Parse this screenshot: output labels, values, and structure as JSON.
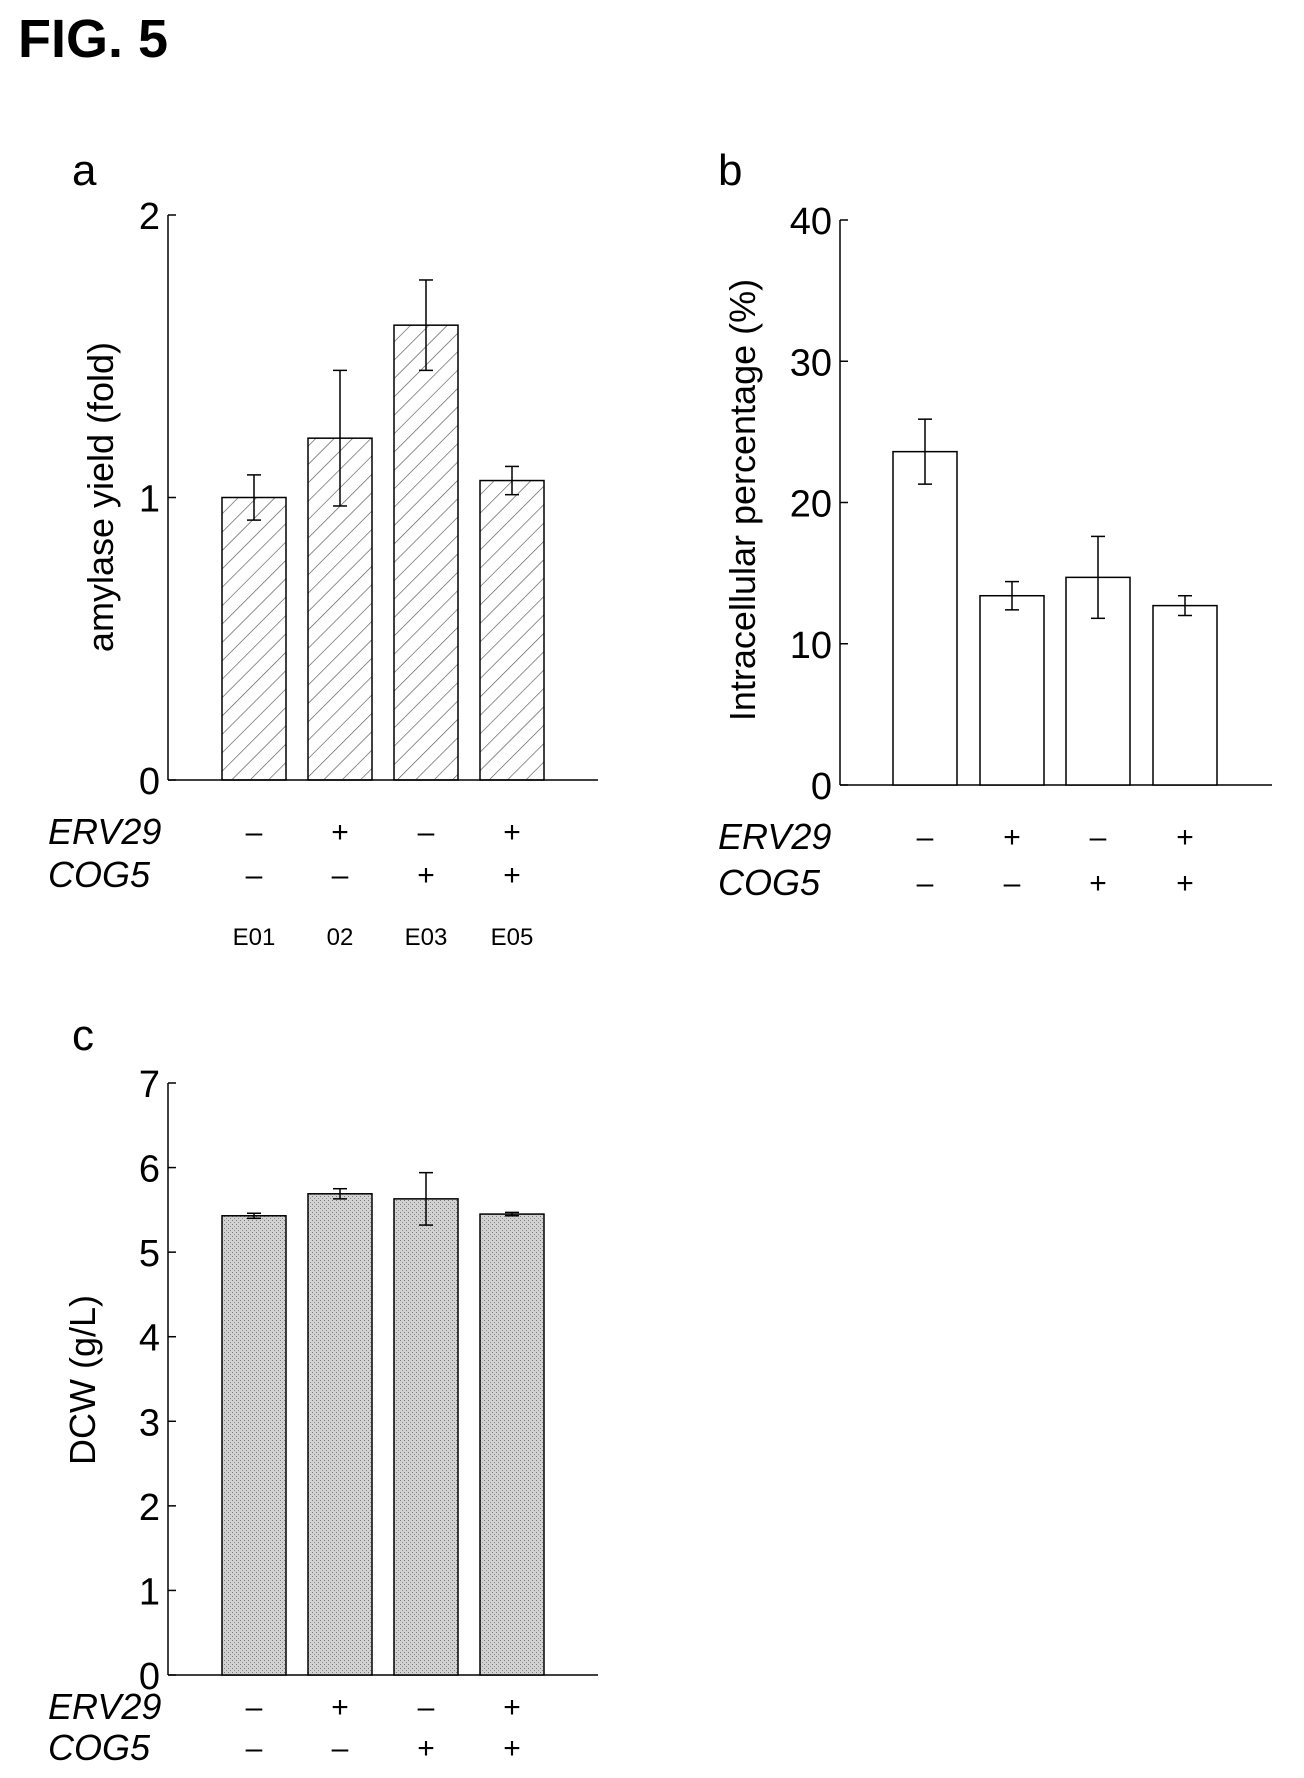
{
  "figure": {
    "title": "FIG. 5"
  },
  "row_labels": {
    "erv29": "ERV29",
    "cog5": "COG5"
  },
  "chart_data": [
    {
      "panel": "a",
      "type": "bar",
      "ylabel": "amylase yield (fold)",
      "ylim": [
        0,
        2
      ],
      "yticks": [
        "0",
        "1",
        "2"
      ],
      "fill": "hatched",
      "values": [
        1.0,
        1.21,
        1.61,
        1.06
      ],
      "errors": [
        0.08,
        0.24,
        0.16,
        0.05
      ],
      "erv29": [
        "-",
        "+",
        "-",
        "+"
      ],
      "cog5": [
        "-",
        "-",
        "+",
        "+"
      ],
      "strain_labels": [
        "E01",
        "02",
        "E03",
        "E05"
      ]
    },
    {
      "panel": "b",
      "type": "bar",
      "ylabel": "Intracellular percentage (%)",
      "ylim": [
        0,
        40
      ],
      "yticks": [
        "0",
        "10",
        "20",
        "30",
        "40"
      ],
      "fill": "white",
      "values": [
        23.6,
        13.4,
        14.7,
        12.7
      ],
      "errors": [
        2.3,
        1.0,
        2.9,
        0.7
      ],
      "erv29": [
        "-",
        "+",
        "-",
        "+"
      ],
      "cog5": [
        "-",
        "-",
        "+",
        "+"
      ]
    },
    {
      "panel": "c",
      "type": "bar",
      "ylabel": "DCW (g/L)",
      "ylim": [
        0,
        7
      ],
      "yticks": [
        "0",
        "1",
        "2",
        "3",
        "4",
        "5",
        "6",
        "7"
      ],
      "fill": "#c8c8c8",
      "values": [
        5.43,
        5.69,
        5.63,
        5.45
      ],
      "errors": [
        0.03,
        0.06,
        0.31,
        0.02
      ],
      "erv29": [
        "-",
        "+",
        "-",
        "+"
      ],
      "cog5": [
        "-",
        "-",
        "+",
        "+"
      ]
    }
  ]
}
